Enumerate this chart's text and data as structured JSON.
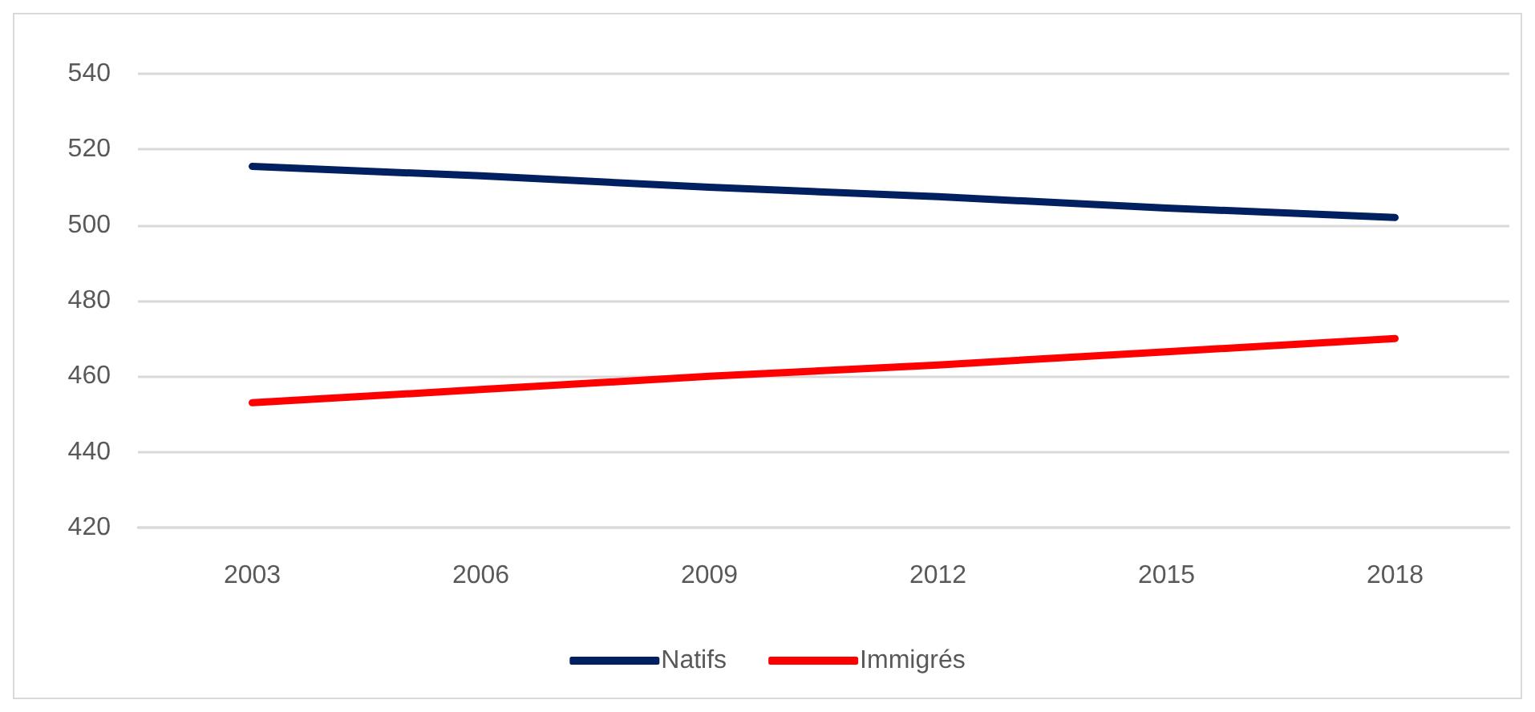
{
  "chart_data": {
    "type": "line",
    "categories": [
      "2003",
      "2006",
      "2009",
      "2012",
      "2015",
      "2018"
    ],
    "series": [
      {
        "name": "Natifs",
        "color": "#002060",
        "values": [
          515.5,
          513,
          510,
          507.5,
          504.5,
          502
        ]
      },
      {
        "name": "Immigrés",
        "color": "#ff0000",
        "values": [
          453,
          456.5,
          460,
          463,
          466.5,
          470
        ]
      }
    ],
    "ylim": [
      420,
      540
    ],
    "yticks": [
      420,
      440,
      460,
      480,
      500,
      520,
      540
    ],
    "grid": "y",
    "legend": "bottom",
    "marker": "none",
    "line_style": "solid"
  }
}
